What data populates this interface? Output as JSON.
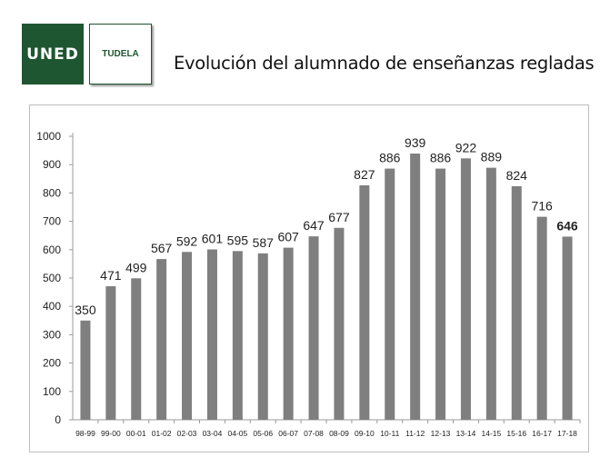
{
  "header": {
    "logo_text": "UNED",
    "badge_text": "TUDELA",
    "title": "Evolución del alumnado de enseñanzas regladas"
  },
  "colors": {
    "brand_green": "#1e5631",
    "bar": "#7f7f7f"
  },
  "chart_data": {
    "type": "bar",
    "title": "",
    "xlabel": "",
    "ylabel": "",
    "ylim": [
      0,
      1000
    ],
    "y_ticks": [
      0,
      100,
      200,
      300,
      400,
      500,
      600,
      700,
      800,
      900,
      1000
    ],
    "grid": false,
    "categories": [
      "98-99",
      "99-00",
      "00-01",
      "01-02",
      "02-03",
      "03-04",
      "04-05",
      "05-06",
      "06-07",
      "07-08",
      "08-09",
      "09-10",
      "10-11",
      "11-12",
      "12-13",
      "13-14",
      "14-15",
      "15-16",
      "16-17",
      "17-18"
    ],
    "values": [
      350,
      471,
      499,
      567,
      592,
      601,
      595,
      587,
      607,
      647,
      677,
      827,
      886,
      939,
      886,
      922,
      889,
      824,
      716,
      646
    ],
    "data_labels": [
      "350",
      "471",
      "499",
      "567",
      "592",
      "601",
      "595",
      "587",
      "607",
      "647",
      "677",
      "827",
      "886",
      "939",
      "886",
      "922",
      "889",
      "824",
      "716",
      "646"
    ],
    "bold_label": "646"
  }
}
